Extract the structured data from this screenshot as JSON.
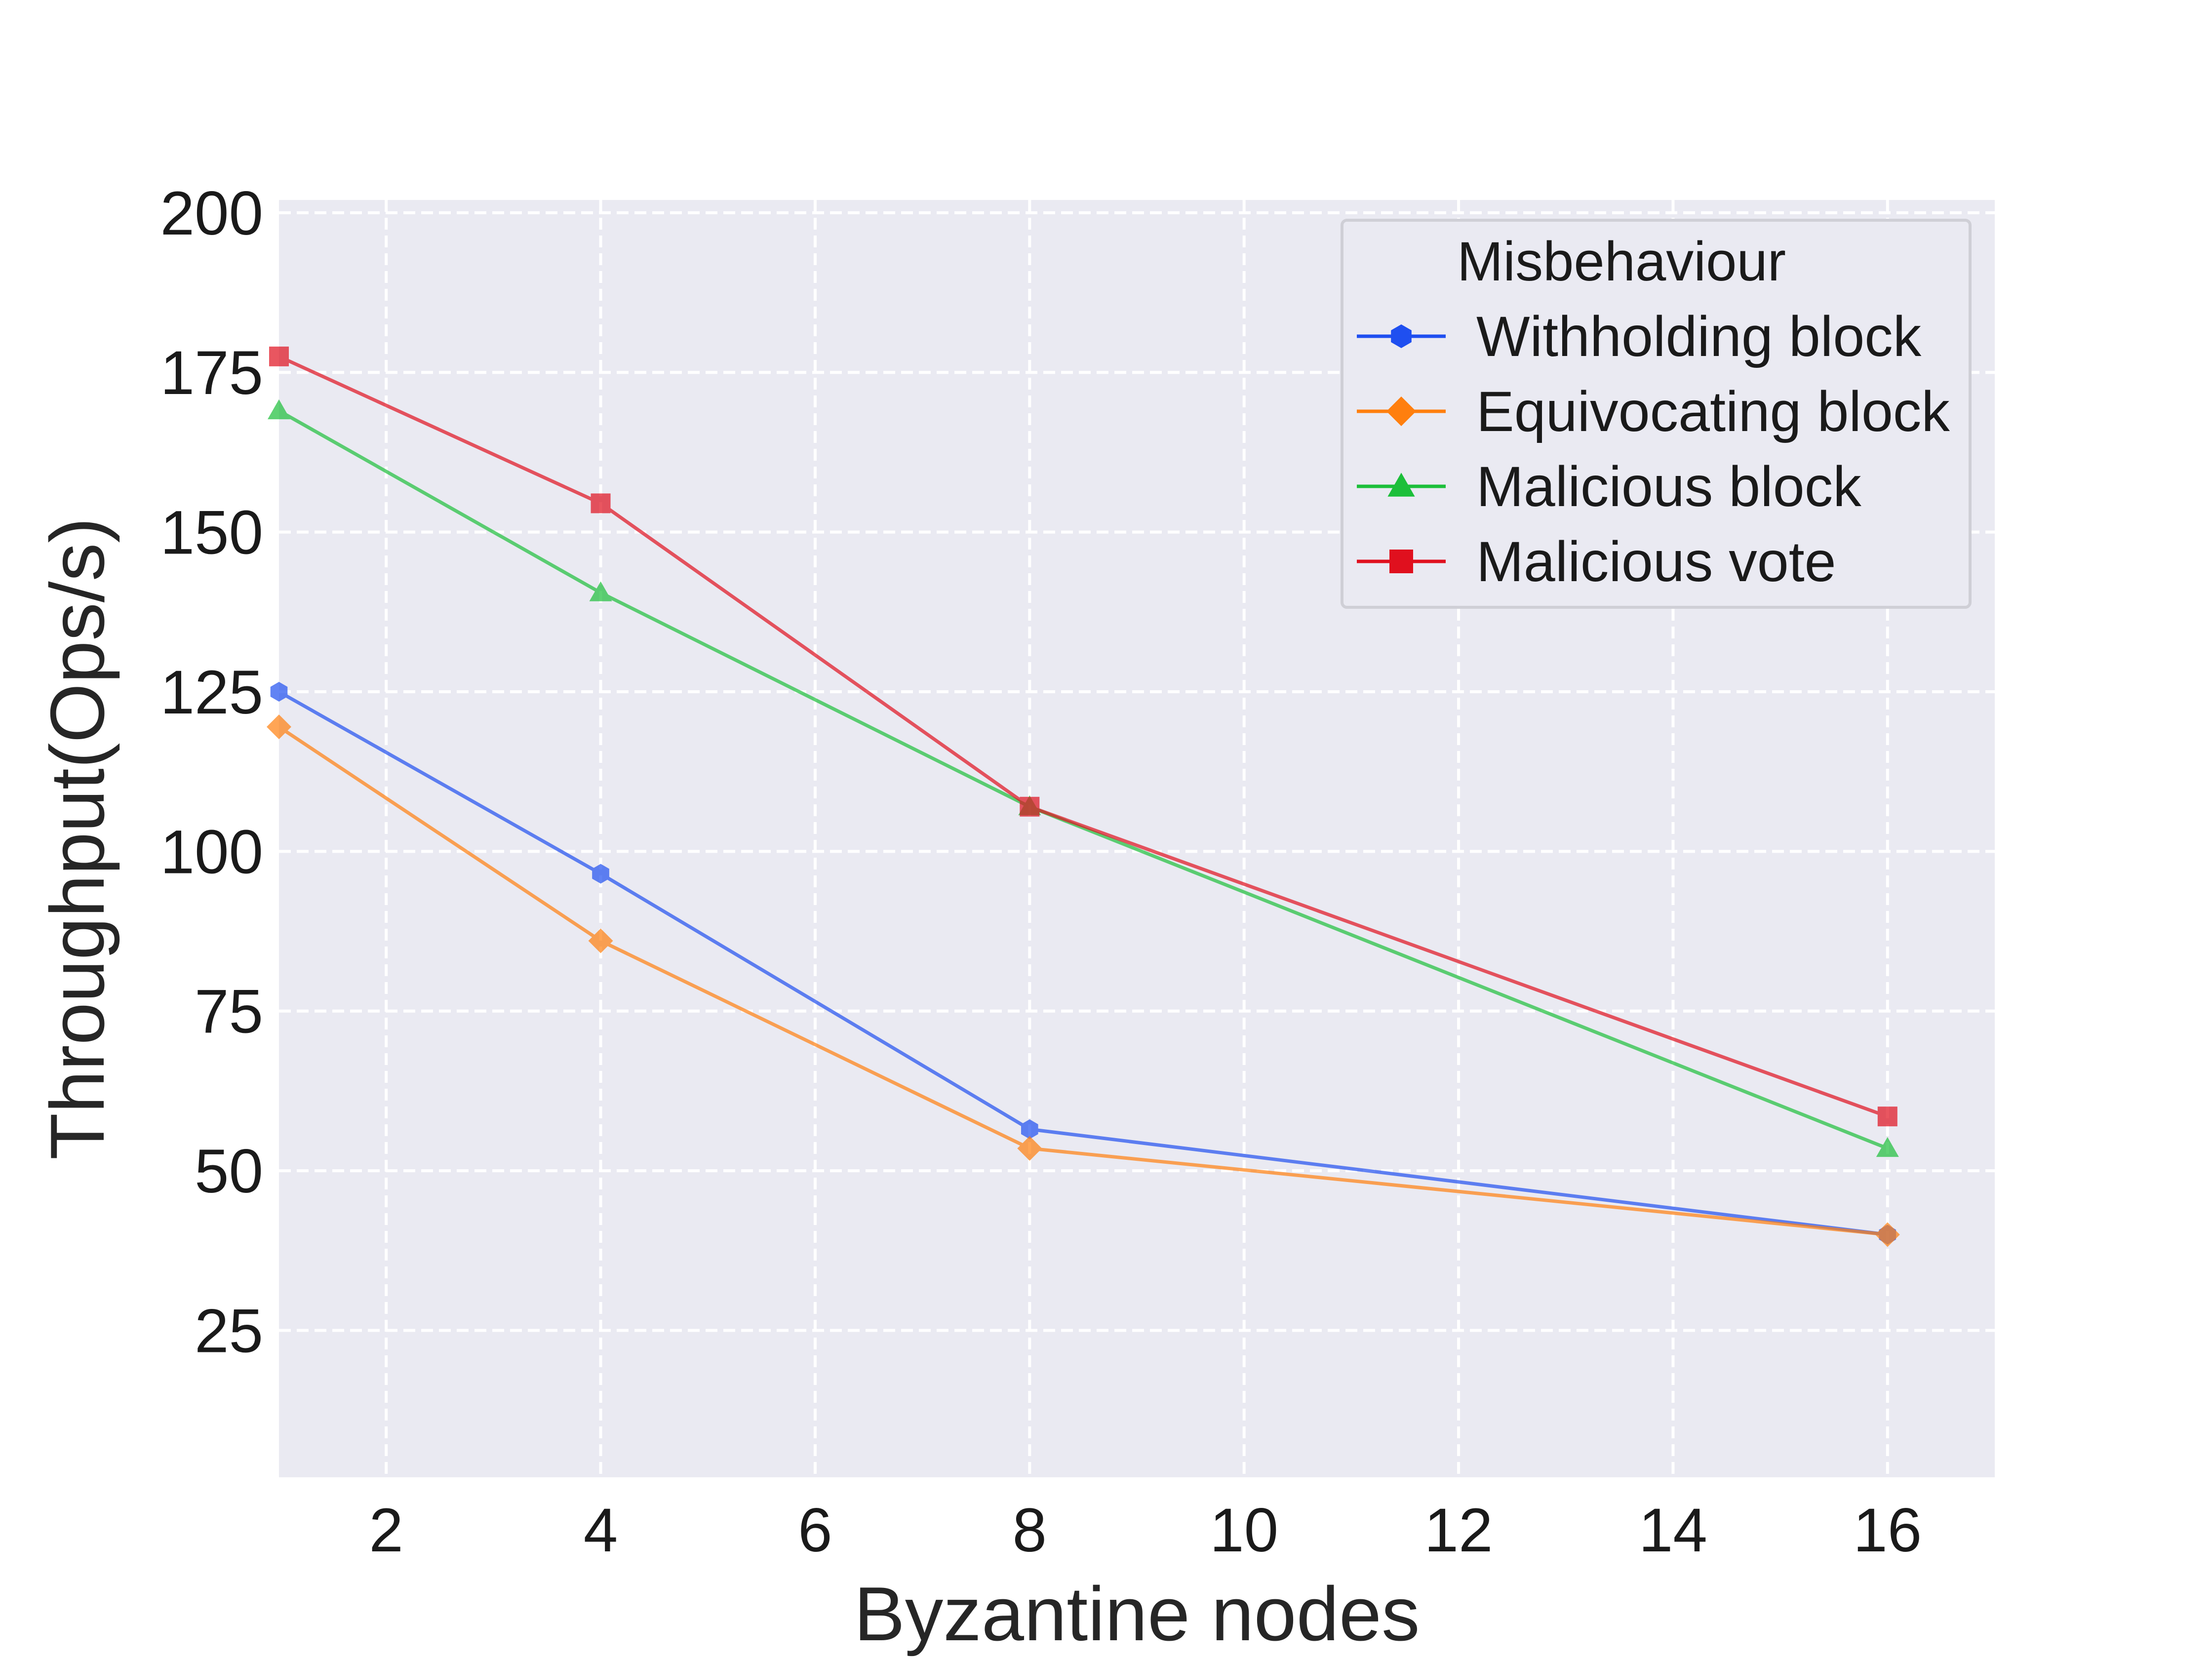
{
  "chart_data": {
    "type": "line",
    "title": "",
    "xlabel": "Byzantine nodes",
    "ylabel": "Throughput(Ops/s)",
    "xlim": [
      1,
      17
    ],
    "ylim": [
      2,
      202
    ],
    "xticks": [
      2,
      4,
      6,
      8,
      10,
      12,
      14,
      16
    ],
    "yticks": [
      25,
      50,
      75,
      100,
      125,
      150,
      175,
      200
    ],
    "x": [
      1,
      4,
      8,
      16
    ],
    "grid": true,
    "legend": {
      "title": "Misbehaviour",
      "placement": "top-right"
    },
    "series": [
      {
        "name": "Withholding block",
        "values": [
          125,
          96.5,
          56.5,
          40
        ],
        "color": "#1f4ff0",
        "marker": "hexagon"
      },
      {
        "name": "Equivocating block",
        "values": [
          119.5,
          86,
          53.5,
          40
        ],
        "color": "#ff7f0e",
        "marker": "diamond"
      },
      {
        "name": "Malicious block",
        "values": [
          169,
          140.5,
          107,
          53.5
        ],
        "color": "#1cbf3a",
        "marker": "triangle"
      },
      {
        "name": "Malicious vote",
        "values": [
          177.5,
          154.5,
          107,
          58.5
        ],
        "color": "#e0101e",
        "marker": "square"
      }
    ]
  }
}
